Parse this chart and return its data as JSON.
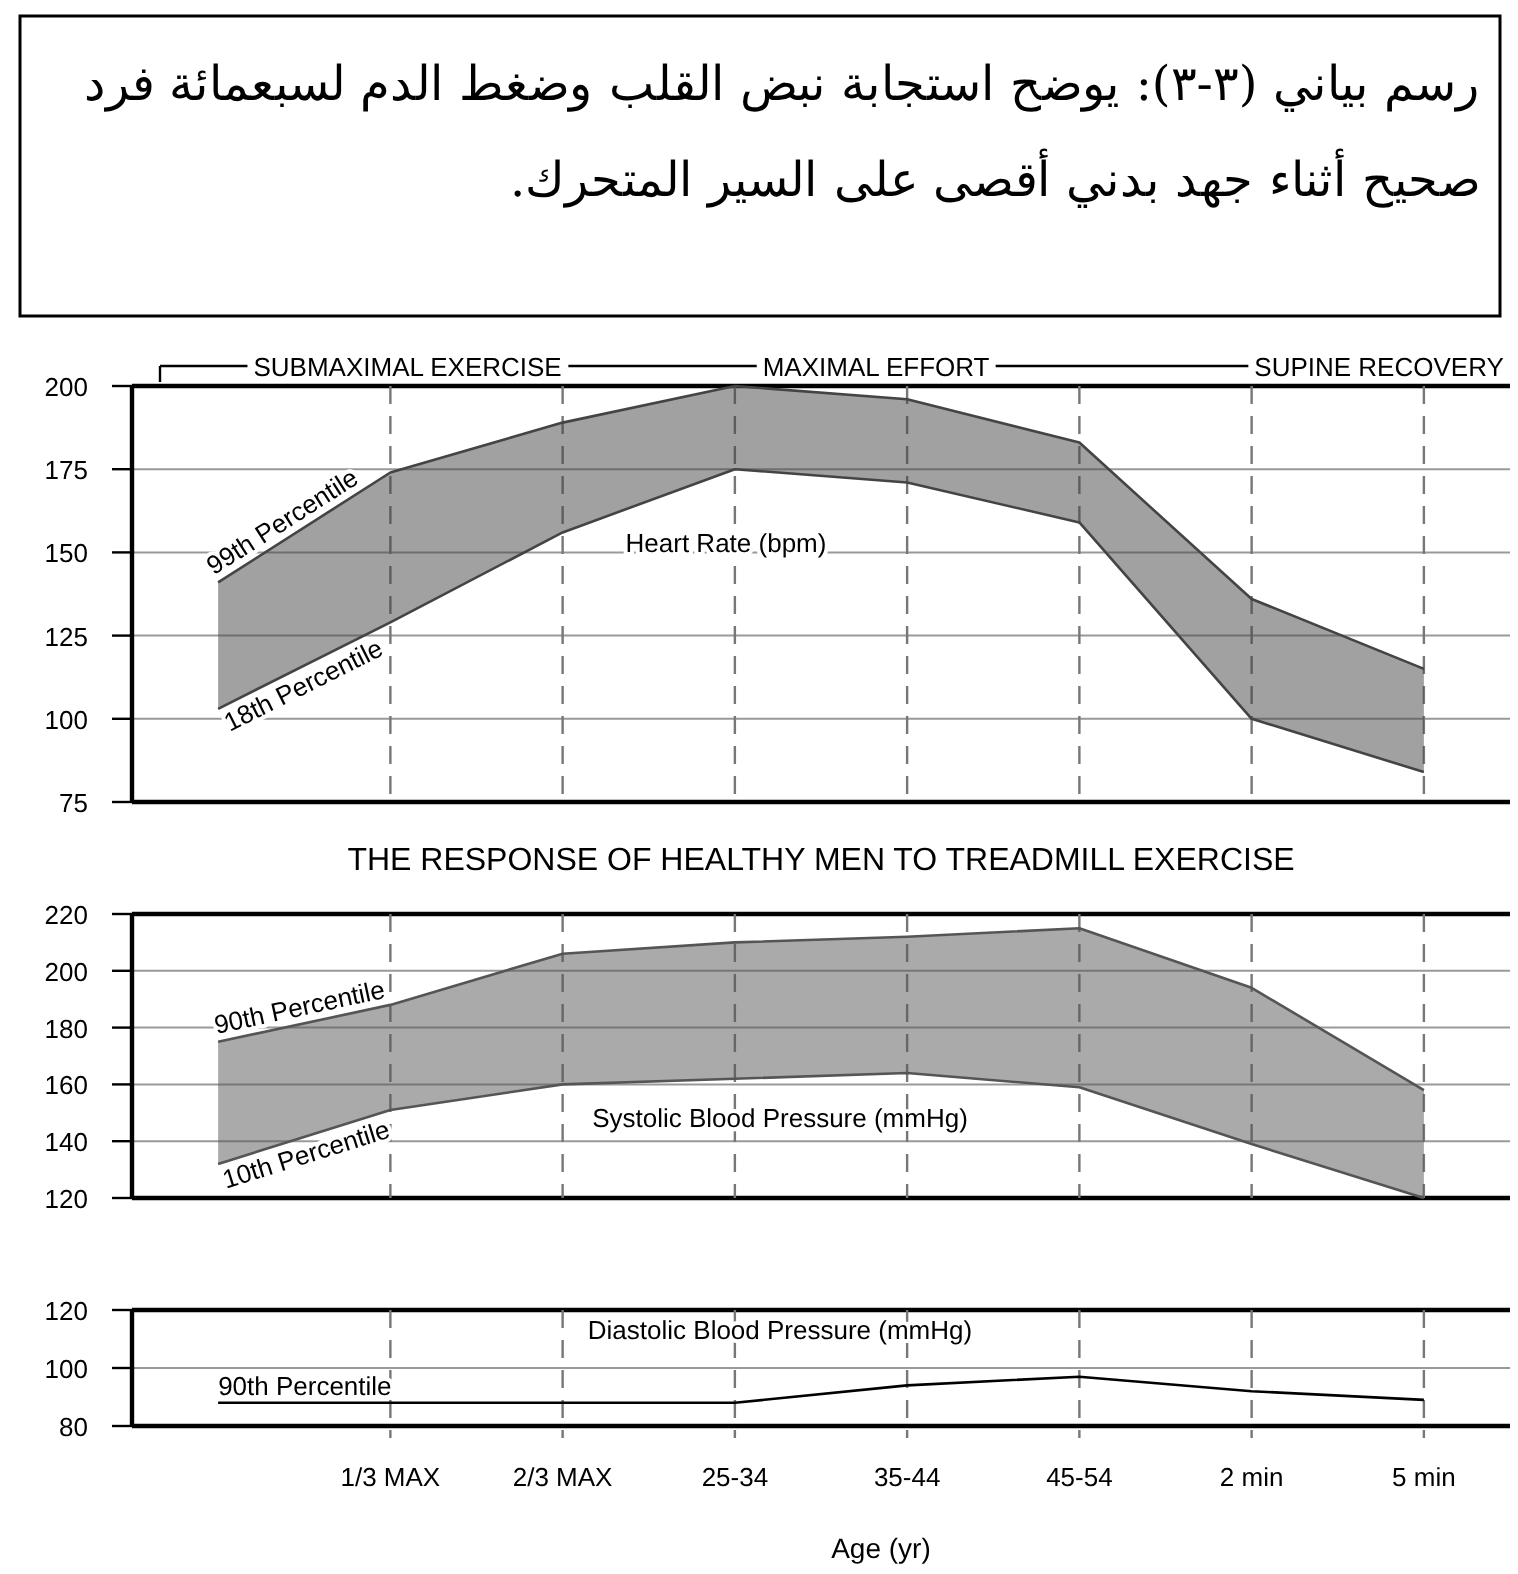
{
  "chart_data": [
    {
      "type": "line",
      "title": "رسم بياني (٣-٣): يوضح استجابة نبض القلب وضغط الدم لسبعمائة فرد صحيح أثناء جهد بدني أقصى على السير المتحرك.",
      "subtitle": "Heart Rate (bpm)",
      "categories": [
        null,
        null,
        null,
        null,
        null,
        null,
        null,
        null
      ],
      "series": [
        {
          "name": "99th Percentile",
          "color": "#444444",
          "values": [
            141,
            174,
            189,
            200,
            196,
            183,
            136,
            115
          ],
          "lower": [
            103,
            129,
            156,
            175,
            171,
            159,
            100,
            84
          ],
          "upper": [
            141,
            174,
            189,
            200,
            196,
            183,
            136,
            115
          ]
        },
        {
          "name": "18th Percentile",
          "color": "#444444",
          "values": [
            103,
            129,
            156,
            175,
            171,
            159,
            100,
            84
          ]
        }
      ],
      "annotations": [
        "SUBMAXIMAL EXERCISE",
        "MAXIMAL EFFORT",
        "SUPINE RECOVERY"
      ],
      "ylim": [
        75,
        200
      ],
      "yticks": [
        75,
        100,
        125,
        150,
        175,
        200
      ],
      "tick_labels": "y",
      "grid": true,
      "marker": "none",
      "line_style": "solid"
    },
    {
      "type": "line",
      "title": "THE RESPONSE OF HEALTHY MEN TO TREADMILL EXERCISE",
      "subtitle": "Systolic Blood Pressure (mmHg)",
      "categories": [
        null,
        null,
        null,
        null,
        null,
        null,
        null,
        null
      ],
      "series": [
        {
          "name": "90th Percentile",
          "color": "#555555",
          "values": [
            175,
            188,
            206,
            210,
            212,
            215,
            194,
            158
          ],
          "lower": [
            132,
            151,
            160,
            162,
            164,
            159,
            139,
            120
          ],
          "upper": [
            175,
            188,
            206,
            210,
            212,
            215,
            194,
            158
          ]
        },
        {
          "name": "10th Percentile",
          "color": "#555555",
          "values": [
            132,
            151,
            160,
            162,
            164,
            159,
            139,
            120
          ]
        }
      ],
      "ylim": [
        120,
        220
      ],
      "yticks": [
        120,
        140,
        160,
        180,
        200,
        220
      ],
      "tick_labels": "y",
      "grid": true,
      "marker": "none",
      "line_style": "solid"
    },
    {
      "type": "line",
      "subtitle": "Diastolic Blood Pressure (mmHg)",
      "xlabel": "Age (yr)",
      "categories": [
        null,
        "1/3 MAX",
        "2/3 MAX",
        "25-34",
        "35-44",
        "45-54",
        "2 min",
        "5 min"
      ],
      "series": [
        {
          "name": "90th Percentile",
          "color": "#000000",
          "values": [
            88,
            88,
            88,
            88,
            94,
            97,
            92,
            89
          ]
        }
      ],
      "ylim": [
        80,
        120
      ],
      "yticks": [
        80,
        100,
        120
      ],
      "ref_lines": [
        {
          "axis": "y",
          "value": 100,
          "color": "#999999"
        }
      ],
      "grid": "x",
      "marker": "none",
      "line_style": "solid"
    }
  ]
}
